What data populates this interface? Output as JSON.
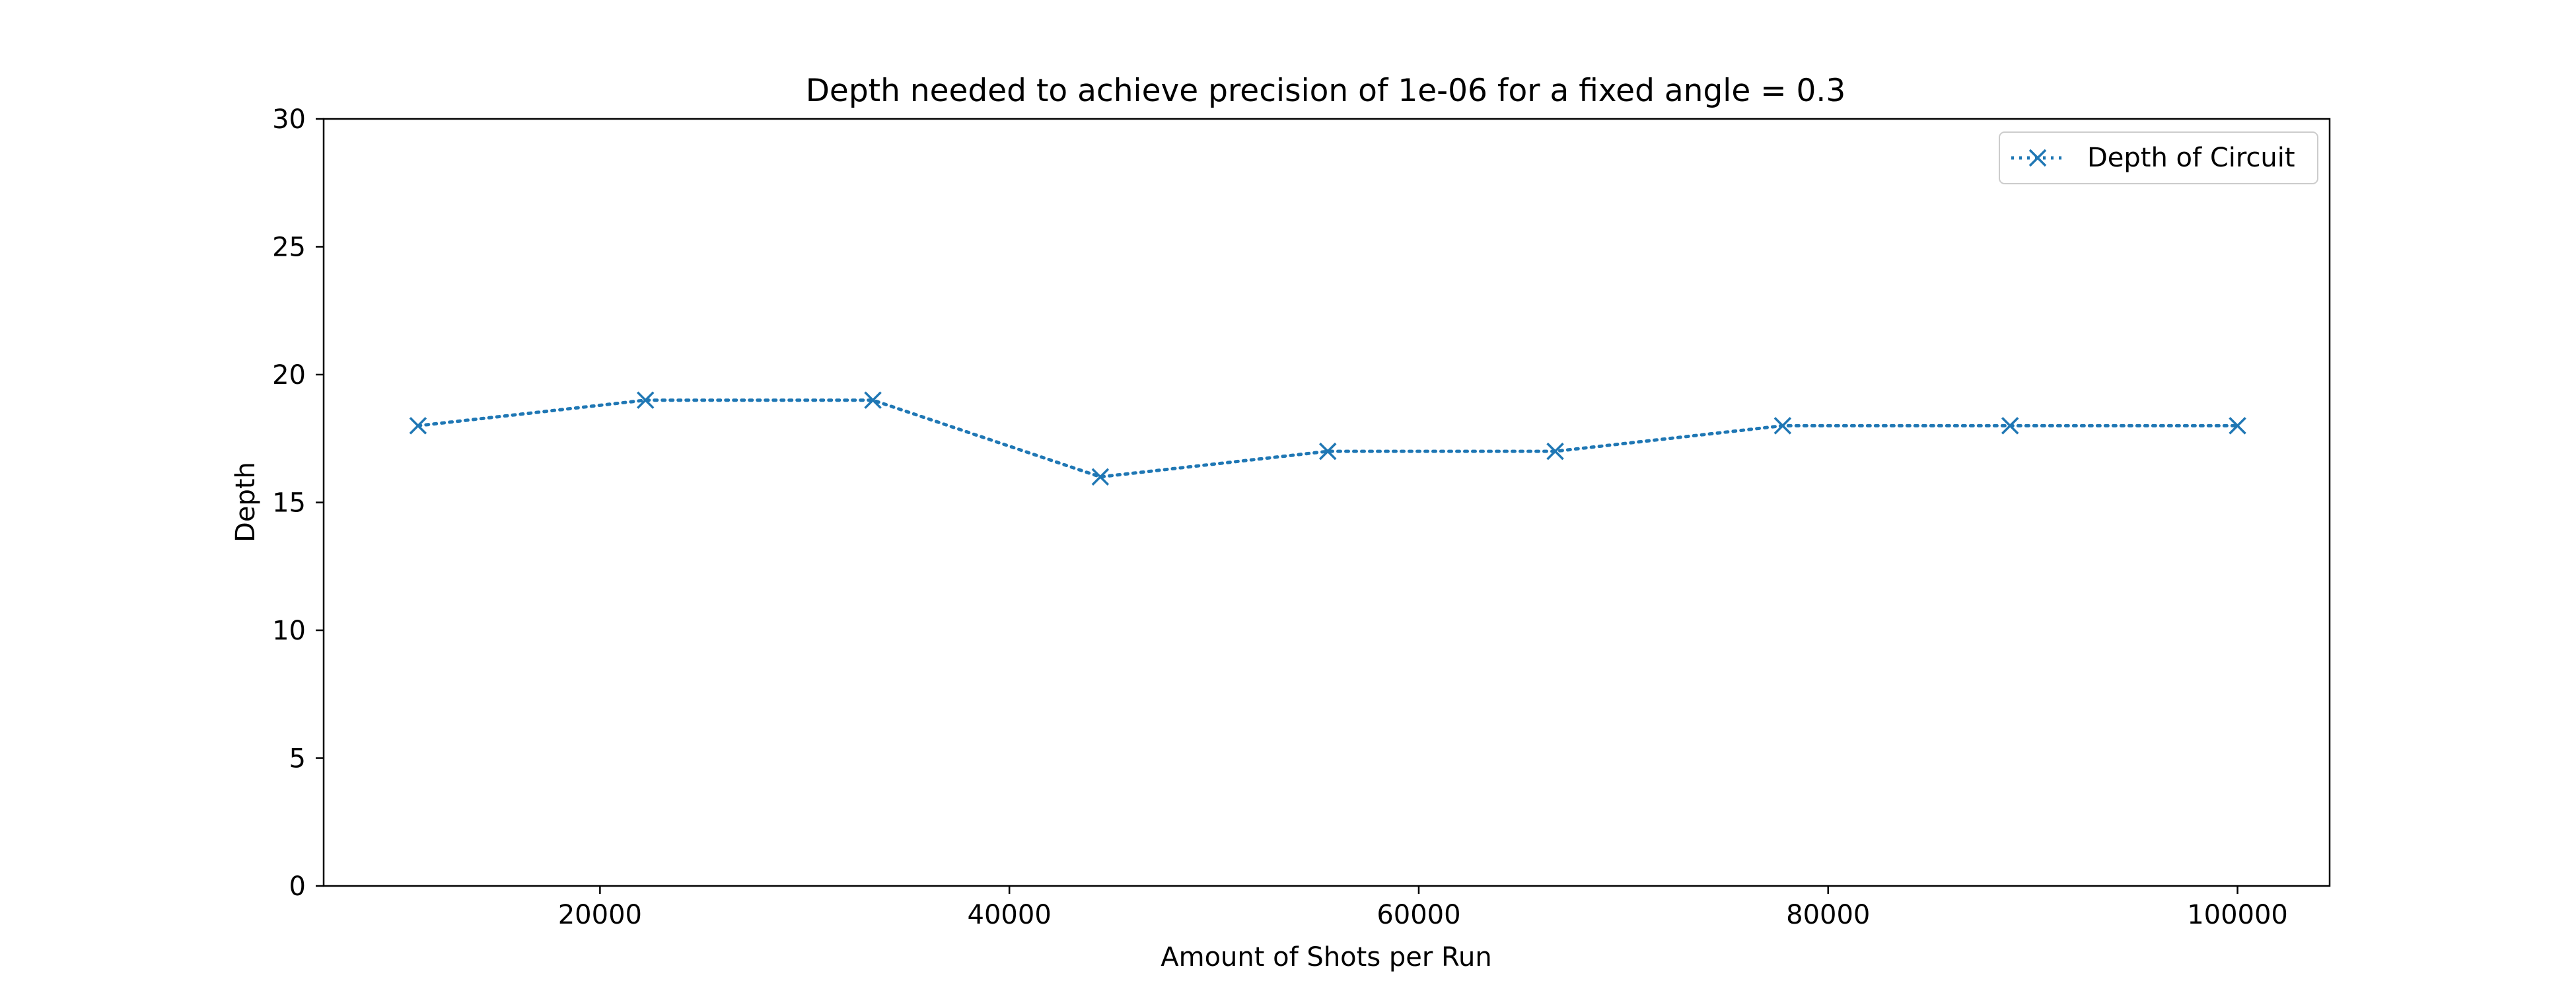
{
  "chart_data": {
    "type": "line",
    "title": "Depth needed to achieve precision of 1e-06 for a fixed angle = 0.3",
    "xlabel": "Amount of Shots per Run",
    "ylabel": "Depth",
    "xlim": [
      6500,
      104500
    ],
    "ylim": [
      0,
      30
    ],
    "x_ticks": [
      20000,
      40000,
      60000,
      80000,
      100000
    ],
    "y_ticks": [
      0,
      5,
      10,
      15,
      20,
      25,
      30
    ],
    "grid": false,
    "legend_position": "top-right",
    "series": [
      {
        "name": "Depth of Circuit",
        "color": "#1f77b4",
        "line_style": "dotted",
        "marker": "x",
        "x": [
          11111,
          22222,
          33333,
          44444,
          55556,
          66667,
          77778,
          88889,
          100000
        ],
        "y": [
          18,
          19,
          19,
          16,
          17,
          17,
          18,
          18,
          18
        ]
      }
    ]
  }
}
